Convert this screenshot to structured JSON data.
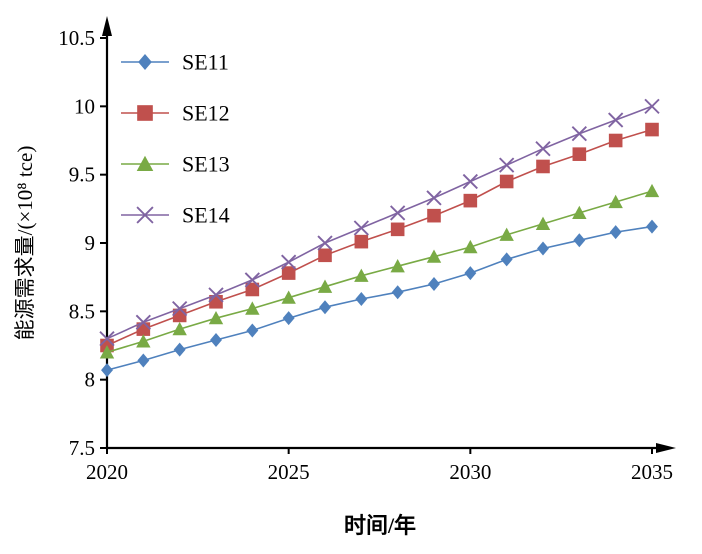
{
  "chart_data": {
    "type": "line",
    "title": "",
    "xlabel": "时间/年",
    "ylabel": "能源需求量/(×10⁸ tce)",
    "xlim": [
      2020,
      2035
    ],
    "ylim": [
      7.5,
      10.5
    ],
    "xticks": [
      2020,
      2025,
      2030,
      2035
    ],
    "xtick_labels": [
      "2020",
      "2025",
      "2030",
      "2035"
    ],
    "yticks": [
      7.5,
      8.0,
      8.5,
      9.0,
      9.5,
      10.0,
      10.5
    ],
    "ytick_labels": [
      "7.5",
      "8",
      "8.5",
      "9",
      "9.5",
      "10",
      "10.5"
    ],
    "grid": false,
    "legend_position": "upper-left-inside",
    "axis_color": "#000000",
    "x": [
      2020,
      2021,
      2022,
      2023,
      2024,
      2025,
      2026,
      2027,
      2028,
      2029,
      2030,
      2031,
      2032,
      2033,
      2034,
      2035
    ],
    "series": [
      {
        "name": "SE11",
        "color": "#4f81bd",
        "marker": "diamond",
        "values": [
          8.07,
          8.14,
          8.22,
          8.29,
          8.36,
          8.45,
          8.53,
          8.59,
          8.64,
          8.7,
          8.78,
          8.88,
          8.96,
          9.02,
          9.08,
          9.12
        ]
      },
      {
        "name": "SE12",
        "color": "#c0504d",
        "marker": "square",
        "values": [
          8.25,
          8.37,
          8.47,
          8.57,
          8.66,
          8.78,
          8.91,
          9.01,
          9.1,
          9.2,
          9.31,
          9.45,
          9.56,
          9.65,
          9.75,
          9.83
        ]
      },
      {
        "name": "SE13",
        "color": "#79aa45",
        "marker": "triangle",
        "values": [
          8.2,
          8.28,
          8.37,
          8.45,
          8.52,
          8.6,
          8.68,
          8.76,
          8.83,
          8.9,
          8.97,
          9.06,
          9.14,
          9.22,
          9.3,
          9.38
        ]
      },
      {
        "name": "SE14",
        "color": "#8064a2",
        "marker": "x",
        "values": [
          8.3,
          8.42,
          8.52,
          8.62,
          8.73,
          8.86,
          9.0,
          9.11,
          9.22,
          9.33,
          9.45,
          9.57,
          9.69,
          9.8,
          9.9,
          10.0
        ]
      }
    ]
  }
}
